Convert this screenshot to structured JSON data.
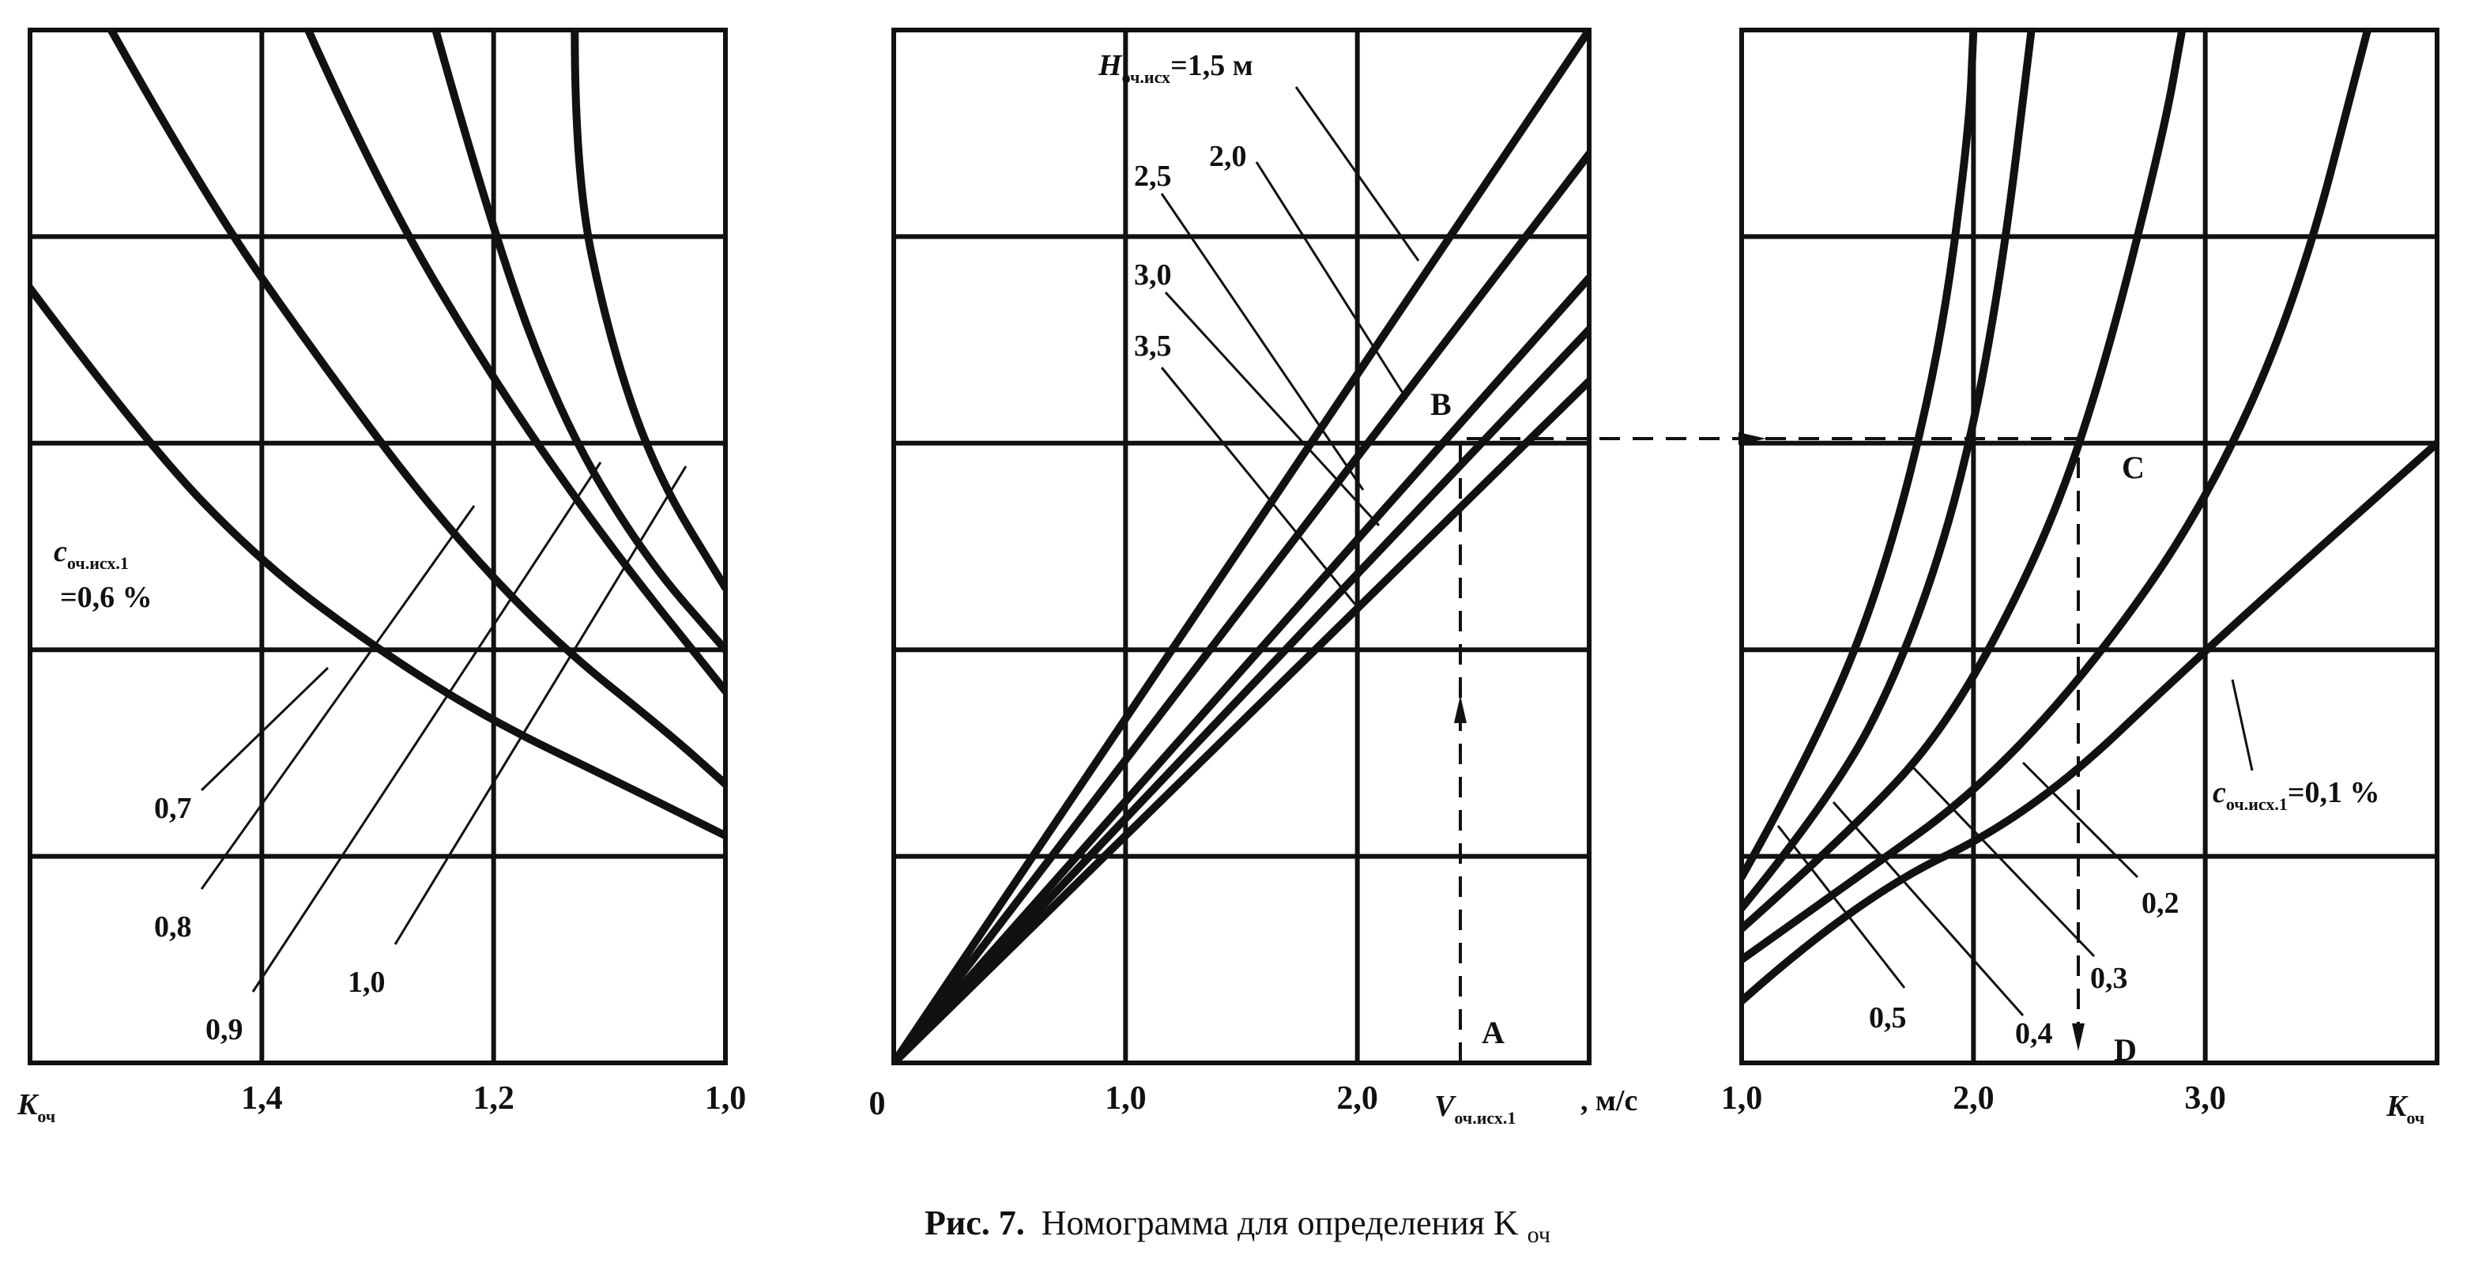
{
  "caption": {
    "prefix": "Рис. 7.",
    "text": "Номограмма для определения K",
    "sub": "оч"
  },
  "chart_data": [
    {
      "type": "line",
      "panel": "left",
      "xlabel": "K",
      "xlabel_sub": "оч",
      "x_reversed": true,
      "xlim": [
        1.0,
        1.6
      ],
      "x_ticks": [
        "1,4",
        "1,2",
        "1,0"
      ],
      "x_tick_values": [
        1.4,
        1.2,
        1.0
      ],
      "ylim": [
        0,
        5
      ],
      "series_label": {
        "main": "c",
        "sub": "оч.исх.1",
        "value": "=0,6 %"
      },
      "series": [
        {
          "name": "0,6",
          "points": [
            [
              1.6,
              3.75
            ],
            [
              1.5,
              3.0
            ],
            [
              1.4,
              2.42
            ],
            [
              1.3,
              2.0
            ],
            [
              1.2,
              1.65
            ],
            [
              1.1,
              1.38
            ],
            [
              1.0,
              1.1
            ]
          ]
        },
        {
          "name": "0,7",
          "points": [
            [
              1.53,
              5.0
            ],
            [
              1.45,
              4.2
            ],
            [
              1.35,
              3.4
            ],
            [
              1.25,
              2.65
            ],
            [
              1.15,
              2.05
            ],
            [
              1.05,
              1.6
            ],
            [
              1.0,
              1.35
            ]
          ]
        },
        {
          "name": "0,8",
          "points": [
            [
              1.36,
              5.0
            ],
            [
              1.3,
              4.25
            ],
            [
              1.2,
              3.3
            ],
            [
              1.1,
              2.5
            ],
            [
              1.0,
              1.8
            ]
          ]
        },
        {
          "name": "0,9",
          "points": [
            [
              1.25,
              5.0
            ],
            [
              1.2,
              4.0
            ],
            [
              1.14,
              3.1
            ],
            [
              1.07,
              2.45
            ],
            [
              1.0,
              2.0
            ]
          ]
        },
        {
          "name": "1,0",
          "points": [
            [
              1.13,
              5.0
            ],
            [
              1.13,
              4.3
            ],
            [
              1.1,
              3.5
            ],
            [
              1.06,
              2.85
            ],
            [
              1.0,
              2.3
            ]
          ]
        }
      ]
    },
    {
      "type": "line",
      "panel": "middle",
      "xlabel": "V",
      "xlabel_sub": "оч.исх.1",
      "xunit": ", м/с",
      "origin_label": "0",
      "xlim": [
        0,
        3.0
      ],
      "x_ticks": [
        "1,0",
        "2,0"
      ],
      "x_tick_values": [
        1.0,
        2.0
      ],
      "ylim": [
        0,
        5
      ],
      "series_label": {
        "main": "H",
        "sub": "оч.исх",
        "value": "=1,5 м"
      },
      "series": [
        {
          "name": "1,5",
          "points": [
            [
              0,
              0
            ],
            [
              3.0,
              5.0
            ]
          ]
        },
        {
          "name": "2,0",
          "points": [
            [
              0,
              0
            ],
            [
              3.0,
              4.4
            ]
          ]
        },
        {
          "name": "2,5",
          "points": [
            [
              0,
              0
            ],
            [
              3.0,
              3.8
            ]
          ]
        },
        {
          "name": "3,0",
          "points": [
            [
              0,
              0
            ],
            [
              3.0,
              3.55
            ]
          ]
        },
        {
          "name": "3,5",
          "points": [
            [
              0,
              0
            ],
            [
              3.0,
              3.3
            ]
          ]
        }
      ],
      "points": [
        {
          "label": "A",
          "x": 2.5,
          "y": 0
        },
        {
          "label": "B",
          "x": 2.5,
          "y": 3.05
        }
      ]
    },
    {
      "type": "line",
      "panel": "right",
      "xlabel": "K",
      "xlabel_sub": "оч",
      "xlim": [
        1.0,
        4.0
      ],
      "x_ticks": [
        "1,0",
        "2,0",
        "3,0"
      ],
      "x_tick_values": [
        1.0,
        2.0,
        3.0
      ],
      "ylim": [
        0,
        5
      ],
      "series_label": {
        "main": "c",
        "sub": "оч.исх.1",
        "value": "=0,1 %"
      },
      "series": [
        {
          "name": "0,1",
          "points": [
            [
              1.0,
              0.3
            ],
            [
              1.5,
              0.8
            ],
            [
              2.25,
              1.2
            ],
            [
              3.0,
              2.0
            ],
            [
              4.0,
              3.0
            ]
          ]
        },
        {
          "name": "0,2",
          "points": [
            [
              1.0,
              0.5
            ],
            [
              1.5,
              0.9
            ],
            [
              2.0,
              1.3
            ],
            [
              2.5,
              1.9
            ],
            [
              3.0,
              2.7
            ],
            [
              3.4,
              3.7
            ],
            [
              3.7,
              5.0
            ]
          ]
        },
        {
          "name": "0,3",
          "points": [
            [
              1.0,
              0.65
            ],
            [
              1.5,
              1.15
            ],
            [
              1.9,
              1.65
            ],
            [
              2.3,
              2.5
            ],
            [
              2.55,
              3.3
            ],
            [
              2.82,
              4.5
            ],
            [
              2.9,
              5.0
            ]
          ]
        },
        {
          "name": "0,4",
          "points": [
            [
              1.0,
              0.75
            ],
            [
              1.4,
              1.3
            ],
            [
              1.7,
              1.95
            ],
            [
              1.95,
              2.8
            ],
            [
              2.12,
              3.8
            ],
            [
              2.25,
              5.0
            ]
          ]
        },
        {
          "name": "0,5",
          "points": [
            [
              1.0,
              0.9
            ],
            [
              1.3,
              1.5
            ],
            [
              1.6,
              2.3
            ],
            [
              1.85,
              3.4
            ],
            [
              1.98,
              4.5
            ],
            [
              2.0,
              5.0
            ]
          ]
        }
      ],
      "points": [
        {
          "label": "C",
          "x": 2.55,
          "y": 3.05
        },
        {
          "label": "D",
          "x": 2.55,
          "y": 0
        }
      ]
    }
  ]
}
